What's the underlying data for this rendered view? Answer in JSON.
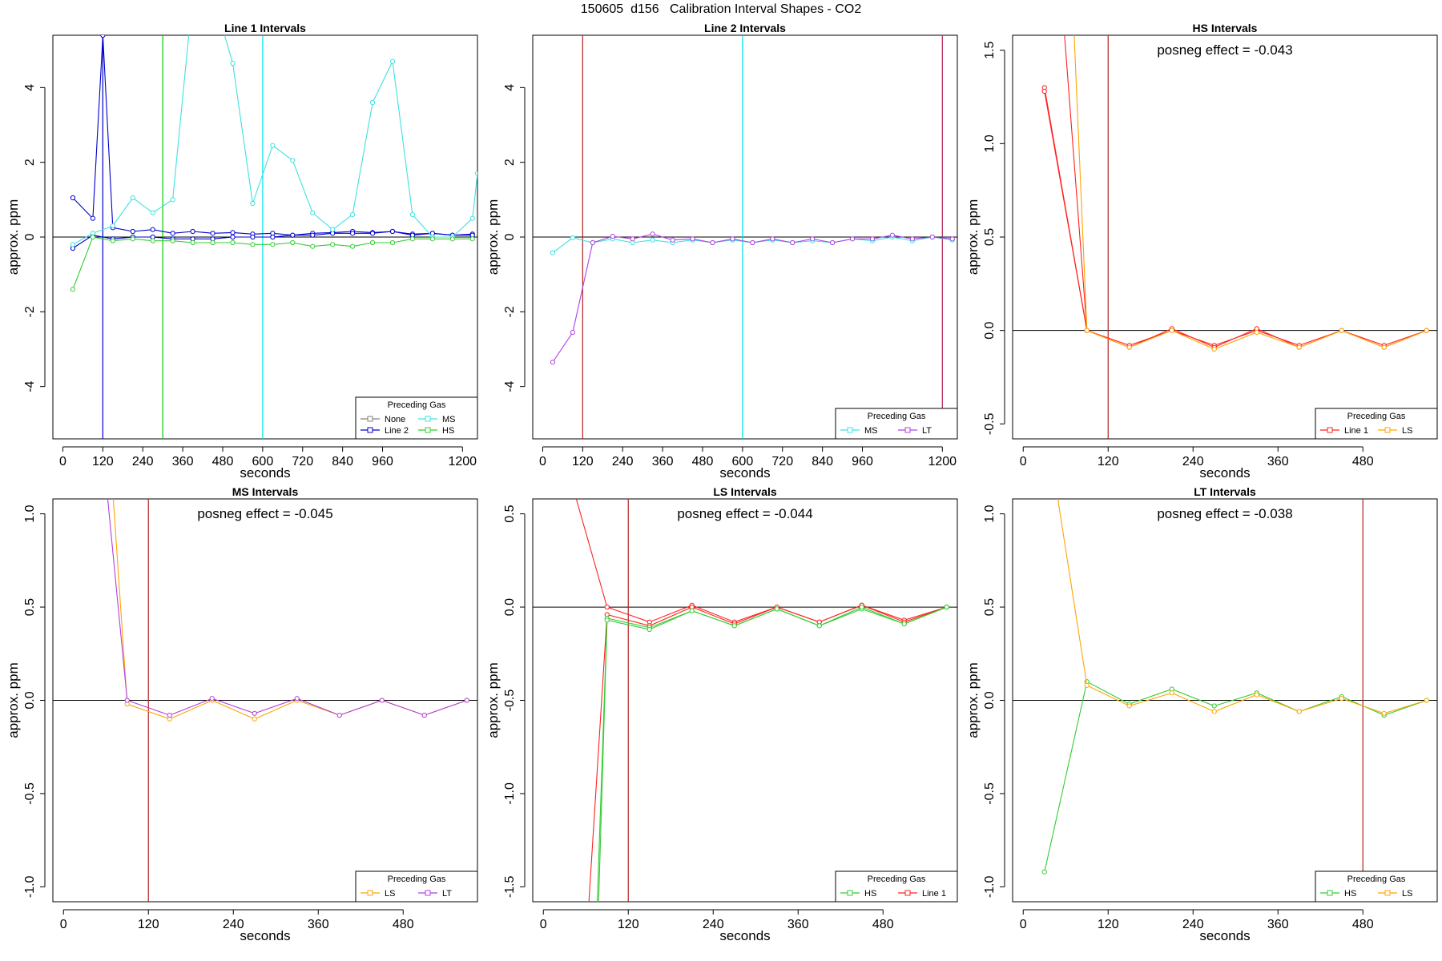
{
  "figure": {
    "title": "150605  d156   Calibration Interval Shapes - CO2"
  },
  "chart_data": [
    {
      "type": "line",
      "title": "Line 1 Intervals",
      "xlabel": "seconds",
      "ylabel": "approx. ppm",
      "xlim": [
        -30,
        1245
      ],
      "ylim": [
        -5.4,
        5.4
      ],
      "xticks": [
        0,
        120,
        240,
        360,
        480,
        600,
        720,
        840,
        960,
        1200
      ],
      "yticks": [
        -4,
        -2,
        0,
        2,
        4
      ],
      "hline": 0,
      "vlines": [
        {
          "x": 120,
          "color": "#0000cc"
        },
        {
          "x": 300,
          "color": "#00cc00"
        },
        {
          "x": 600,
          "color": "#00e5e5"
        }
      ],
      "legend": {
        "title": "Preceding Gas",
        "position": "bottom-right",
        "columns": 2,
        "entries": [
          "None",
          "Line 2",
          "MS",
          "HS"
        ]
      },
      "series": [
        {
          "name": "None",
          "color": "#808080",
          "x": [],
          "y": []
        },
        {
          "name": "Line 2",
          "color": "#0000cc",
          "x": [
            30,
            90,
            120,
            150,
            210,
            270,
            330,
            390,
            450,
            510,
            570,
            630,
            690,
            750,
            810,
            870,
            930,
            990,
            1050,
            1110,
            1170,
            1230
          ],
          "y": [
            1.05,
            0.5,
            5.4,
            0.25,
            0.15,
            0.2,
            0.1,
            0.15,
            0.1,
            0.12,
            0.08,
            0.1,
            0.05,
            0.1,
            0.12,
            0.15,
            0.12,
            0.15,
            0.08,
            0.1,
            0.05,
            0.08
          ]
        },
        {
          "name": "Line 2",
          "color": "#0000cc",
          "x": [
            30,
            90,
            150,
            210,
            270,
            330,
            390,
            450,
            510,
            570,
            630,
            690,
            750,
            810,
            870,
            930,
            990,
            1050,
            1110,
            1170,
            1230
          ],
          "y": [
            -0.3,
            0.05,
            -0.05,
            0.0,
            0.0,
            -0.05,
            -0.05,
            -0.05,
            0.0,
            0.0,
            0.0,
            0.05,
            0.05,
            0.1,
            0.1,
            0.1,
            0.15,
            0.05,
            0.1,
            0.05,
            0.05
          ]
        },
        {
          "name": "MS",
          "color": "#40e0e0",
          "x": [
            30,
            90,
            150,
            210,
            270,
            330,
            390,
            450,
            510,
            570,
            630,
            690,
            750,
            810,
            870,
            930,
            990,
            1050,
            1110,
            1170,
            1230,
            1245
          ],
          "y": [
            -0.2,
            0.1,
            0.3,
            1.05,
            0.65,
            1.0,
            6.5,
            6.5,
            4.65,
            0.9,
            2.45,
            2.05,
            0.65,
            0.2,
            0.6,
            3.6,
            4.7,
            0.6,
            0.0,
            0.0,
            0.5,
            1.7
          ]
        },
        {
          "name": "HS",
          "color": "#33cc33",
          "x": [
            30,
            90,
            150,
            210,
            270,
            330,
            390,
            450,
            510,
            570,
            630,
            690,
            750,
            810,
            870,
            930,
            990,
            1050,
            1110,
            1170,
            1230
          ],
          "y": [
            -1.4,
            0.0,
            -0.1,
            -0.05,
            -0.1,
            -0.1,
            -0.15,
            -0.15,
            -0.15,
            -0.2,
            -0.2,
            -0.15,
            -0.25,
            -0.2,
            -0.25,
            -0.15,
            -0.15,
            -0.05,
            -0.05,
            -0.05,
            -0.05
          ]
        }
      ]
    },
    {
      "type": "line",
      "title": "Line 2 Intervals",
      "xlabel": "seconds",
      "ylabel": "approx. ppm",
      "xlim": [
        -30,
        1245
      ],
      "ylim": [
        -5.4,
        5.4
      ],
      "xticks": [
        0,
        120,
        240,
        360,
        480,
        600,
        720,
        840,
        960,
        1200
      ],
      "yticks": [
        -4,
        -2,
        0,
        2,
        4
      ],
      "hline": 0,
      "vlines": [
        {
          "x": 120,
          "color": "#b22222"
        },
        {
          "x": 600,
          "color": "#00e5e5"
        },
        {
          "x": 1200,
          "color": "#b22255"
        }
      ],
      "legend": {
        "title": "Preceding Gas",
        "position": "bottom-right",
        "columns": 2,
        "entries": [
          "MS",
          "LT"
        ]
      },
      "series": [
        {
          "name": "MS",
          "color": "#40e0e0",
          "x": [
            30,
            90,
            150,
            210,
            270,
            330,
            390,
            450,
            510,
            570,
            630,
            690,
            750,
            810,
            870,
            930,
            990,
            1050,
            1110,
            1170,
            1230
          ],
          "y": [
            -0.42,
            -0.02,
            -0.15,
            -0.05,
            -0.15,
            -0.08,
            -0.15,
            -0.08,
            -0.15,
            -0.08,
            -0.15,
            -0.08,
            -0.15,
            -0.1,
            -0.15,
            -0.05,
            -0.1,
            0.0,
            -0.1,
            0.0,
            -0.08
          ]
        },
        {
          "name": "LT",
          "color": "#b040e0",
          "x": [
            30,
            90,
            150,
            210,
            270,
            330,
            390,
            450,
            510,
            570,
            630,
            690,
            750,
            810,
            870,
            930,
            990,
            1050,
            1110,
            1170,
            1230
          ],
          "y": [
            -3.35,
            -2.55,
            -0.15,
            0.02,
            -0.05,
            0.08,
            -0.08,
            -0.05,
            -0.15,
            -0.05,
            -0.15,
            -0.05,
            -0.15,
            -0.05,
            -0.15,
            -0.05,
            -0.05,
            0.05,
            -0.05,
            0.0,
            -0.05
          ]
        }
      ]
    },
    {
      "type": "line",
      "title": "HS Intervals",
      "annotation": "posneg effect = -0.043",
      "xlabel": "seconds",
      "ylabel": "approx. ppm",
      "xlim": [
        -15,
        585
      ],
      "ylim": [
        -0.58,
        1.58
      ],
      "xticks": [
        0,
        120,
        240,
        360,
        480
      ],
      "yticks": [
        -0.5,
        0.0,
        0.5,
        1.0,
        1.5
      ],
      "hline": 0,
      "vlines": [
        {
          "x": 120,
          "color": "#b22222"
        }
      ],
      "legend": {
        "title": "Preceding Gas",
        "position": "bottom-right",
        "columns": 2,
        "entries": [
          "Line 1",
          "LS"
        ]
      },
      "series": [
        {
          "name": "Line 1",
          "color": "#ff2020",
          "x": [
            30,
            90,
            150,
            210,
            270,
            330,
            390,
            450,
            510,
            570
          ],
          "y": [
            1.3,
            0.0,
            -0.08,
            0.0,
            -0.08,
            0.0,
            -0.08,
            0.0,
            -0.08,
            0.0
          ]
        },
        {
          "name": "Line 1",
          "color": "#ff2020",
          "x": [
            30,
            90,
            150,
            210,
            270,
            330,
            390,
            450,
            510,
            570
          ],
          "y": [
            1.28,
            0.0,
            -0.09,
            0.01,
            -0.09,
            0.01,
            -0.09,
            0.0,
            -0.09,
            0.0
          ]
        },
        {
          "name": "Line 1",
          "color": "#ff2020",
          "x": [
            55,
            90
          ],
          "y": [
            1.75,
            0.0
          ]
        },
        {
          "name": "LS",
          "color": "#ffa500",
          "x": [
            70,
            90,
            150,
            210,
            270,
            330,
            390,
            450,
            510,
            570
          ],
          "y": [
            1.75,
            0.0,
            -0.09,
            0.0,
            -0.1,
            -0.01,
            -0.09,
            0.0,
            -0.09,
            0.0
          ]
        }
      ]
    },
    {
      "type": "line",
      "title": "MS Intervals",
      "annotation": "posneg effect = -0.045",
      "xlabel": "seconds",
      "ylabel": "approx. ppm",
      "xlim": [
        -15,
        585
      ],
      "ylim": [
        -1.08,
        1.08
      ],
      "xticks": [
        0,
        120,
        240,
        360,
        480
      ],
      "yticks": [
        -1.0,
        -0.5,
        0.0,
        0.5,
        1.0
      ],
      "hline": 0,
      "vlines": [
        {
          "x": 120,
          "color": "#b22222"
        }
      ],
      "legend": {
        "title": "Preceding Gas",
        "position": "bottom-right",
        "columns": 2,
        "entries": [
          "LS",
          "LT"
        ]
      },
      "series": [
        {
          "name": "LS",
          "color": "#ffa500",
          "x": [
            70,
            90,
            150,
            210,
            270,
            330,
            390,
            450,
            510,
            570
          ],
          "y": [
            1.1,
            -0.02,
            -0.1,
            0.0,
            -0.1,
            0.0,
            -0.08,
            0.0,
            -0.08,
            0.0
          ]
        },
        {
          "name": "LT",
          "color": "#b040e0",
          "x": [
            62,
            90,
            150,
            210,
            270,
            330,
            390,
            450,
            510,
            570
          ],
          "y": [
            1.1,
            0.0,
            -0.08,
            0.01,
            -0.07,
            0.01,
            -0.08,
            0.0,
            -0.08,
            0.0
          ]
        }
      ]
    },
    {
      "type": "line",
      "title": "LS Intervals",
      "annotation": "posneg effect = -0.044",
      "xlabel": "seconds",
      "ylabel": "approx. ppm",
      "xlim": [
        -15,
        585
      ],
      "ylim": [
        -1.58,
        0.58
      ],
      "xticks": [
        0,
        120,
        240,
        360,
        480
      ],
      "yticks": [
        -1.5,
        -1.0,
        -0.5,
        0.0,
        0.5
      ],
      "hline": 0,
      "vlines": [
        {
          "x": 120,
          "color": "#b22222"
        }
      ],
      "legend": {
        "title": "Preceding Gas",
        "position": "bottom-right",
        "columns": 2,
        "entries": [
          "HS",
          "Line 1"
        ]
      },
      "series": [
        {
          "name": "Line 1",
          "color": "#ff2020",
          "x": [
            45,
            90,
            150,
            210,
            270,
            330,
            390,
            450,
            510,
            570
          ],
          "y": [
            0.6,
            0.0,
            -0.08,
            0.01,
            -0.08,
            0.0,
            -0.08,
            0.01,
            -0.07,
            0.0
          ]
        },
        {
          "name": "Line 1",
          "color": "#ff2020",
          "x": [
            64,
            90,
            150,
            210,
            270,
            330,
            390,
            450,
            510,
            570
          ],
          "y": [
            -1.6,
            -0.04,
            -0.1,
            0.0,
            -0.09,
            0.0,
            -0.08,
            0.01,
            -0.08,
            0.0
          ]
        },
        {
          "name": "HS",
          "color": "#33cc33",
          "x": [
            76,
            90,
            150,
            210,
            270,
            330,
            390,
            450,
            510,
            570
          ],
          "y": [
            -1.6,
            -0.06,
            -0.11,
            -0.02,
            -0.1,
            -0.01,
            -0.1,
            -0.01,
            -0.09,
            0.0
          ]
        },
        {
          "name": "HS",
          "color": "#33cc33",
          "x": [
            78,
            90,
            150,
            210,
            270,
            330,
            390,
            450,
            510,
            570
          ],
          "y": [
            -1.6,
            -0.07,
            -0.12,
            -0.02,
            -0.1,
            -0.01,
            -0.1,
            0.0,
            -0.09,
            0.0
          ]
        }
      ]
    },
    {
      "type": "line",
      "title": "LT Intervals",
      "annotation": "posneg effect = -0.038",
      "xlabel": "seconds",
      "ylabel": "approx. ppm",
      "xlim": [
        -15,
        585
      ],
      "ylim": [
        -1.08,
        1.08
      ],
      "xticks": [
        0,
        120,
        240,
        360,
        480
      ],
      "yticks": [
        -1.0,
        -0.5,
        0.0,
        0.5,
        1.0
      ],
      "hline": 0,
      "vlines": [
        {
          "x": 480,
          "color": "#b22222"
        }
      ],
      "legend": {
        "title": "Preceding Gas",
        "position": "bottom-right",
        "columns": 2,
        "entries": [
          "HS",
          "LS"
        ]
      },
      "series": [
        {
          "name": "HS",
          "color": "#33cc33",
          "x": [
            30,
            90,
            150,
            210,
            270,
            330,
            390,
            450,
            510,
            570
          ],
          "y": [
            -0.92,
            0.1,
            -0.02,
            0.06,
            -0.03,
            0.04,
            -0.06,
            0.02,
            -0.08,
            0.0
          ]
        },
        {
          "name": "LS",
          "color": "#ffa500",
          "x": [
            48,
            90,
            150,
            210,
            270,
            330,
            390,
            450,
            510,
            570
          ],
          "y": [
            1.1,
            0.08,
            -0.03,
            0.04,
            -0.06,
            0.03,
            -0.06,
            0.01,
            -0.07,
            0.0
          ]
        }
      ]
    }
  ]
}
